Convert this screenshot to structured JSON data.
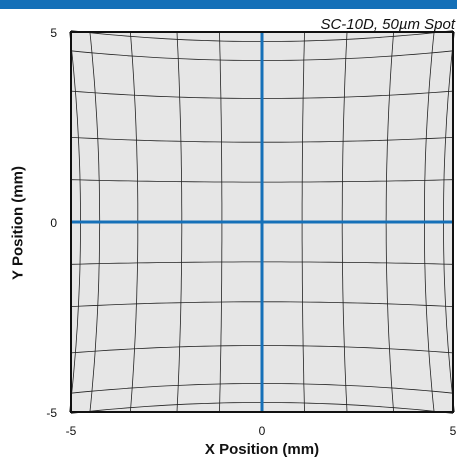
{
  "colors": {
    "topbar": "#1570b8",
    "axis": "#1570b8",
    "plot_bg": "#e6e6e6",
    "grid": "#222222"
  },
  "chart_data": {
    "type": "scatter",
    "title": "",
    "subtitle": "SC-10D, 50µm Spot",
    "xlabel": "X Position (mm)",
    "ylabel": "Y Position (mm)",
    "xlim": [
      -5,
      5
    ],
    "ylim": [
      -5,
      5
    ],
    "xticks": [
      "-5",
      "0",
      "5"
    ],
    "yticks": [
      "5",
      "0",
      "-5"
    ],
    "grid": "distorted pincushion field grid",
    "field_lines": [
      -4.75,
      -4.25,
      -3.25,
      -2.1,
      -1.05,
      1.05,
      2.1,
      3.25,
      4.25,
      4.75
    ],
    "edge_value": 5,
    "distortion": "pincushion",
    "distortion_max_mm": 0.3,
    "center_axes": [
      0,
      0
    ]
  }
}
